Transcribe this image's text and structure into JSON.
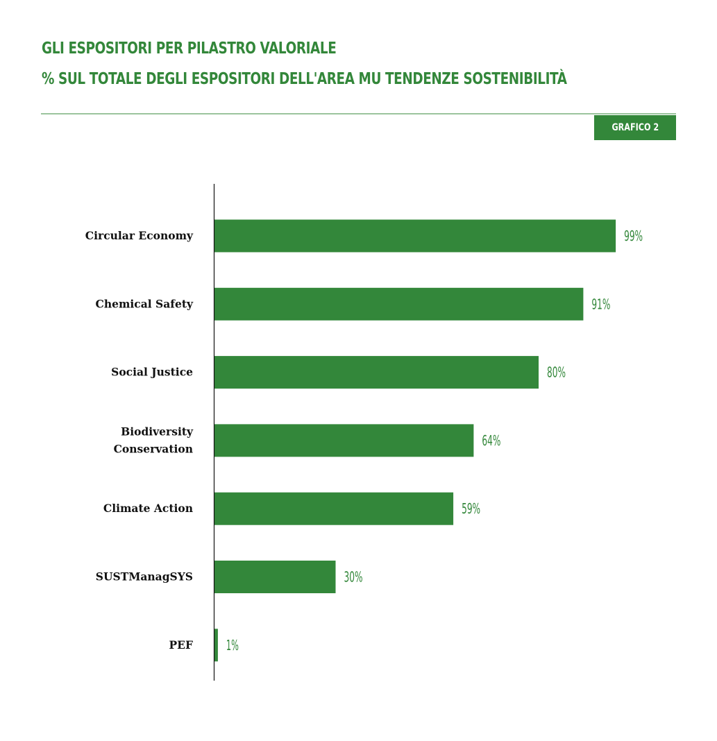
{
  "header": {
    "title_line1": "GLI ESPOSITORI PER PILASTRO VALORIALE",
    "title_line2": "% SUL TOTALE DEGLI ESPOSITORI DELL'AREA MU TENDENZE SOSTENIBILITÀ",
    "badge": "GRAFICO 2"
  },
  "colors": {
    "bar": "#33873a",
    "accent": "#33873a",
    "rule": "#9ac49d"
  },
  "chart_data": {
    "type": "bar",
    "orientation": "horizontal",
    "title": "GLI ESPOSITORI PER PILASTRO VALORIALE",
    "subtitle": "% SUL TOTALE DEGLI ESPOSITORI DELL'AREA MU TENDENZE SOSTENIBILITÀ",
    "unit": "%",
    "categories": [
      [
        "Circular Economy"
      ],
      [
        "Chemical Safety"
      ],
      [
        "Social Justice"
      ],
      [
        "Biodiversity",
        "Conservation"
      ],
      [
        "Climate Action"
      ],
      [
        "SUSTManagSYS"
      ],
      [
        "PEF"
      ]
    ],
    "values": [
      99,
      91,
      80,
      64,
      59,
      30,
      1
    ],
    "value_labels": [
      "99%",
      "91%",
      "80%",
      "64%",
      "59%",
      "30%",
      "1%"
    ],
    "xlim": [
      0,
      100
    ],
    "grid": false,
    "legend": false
  }
}
